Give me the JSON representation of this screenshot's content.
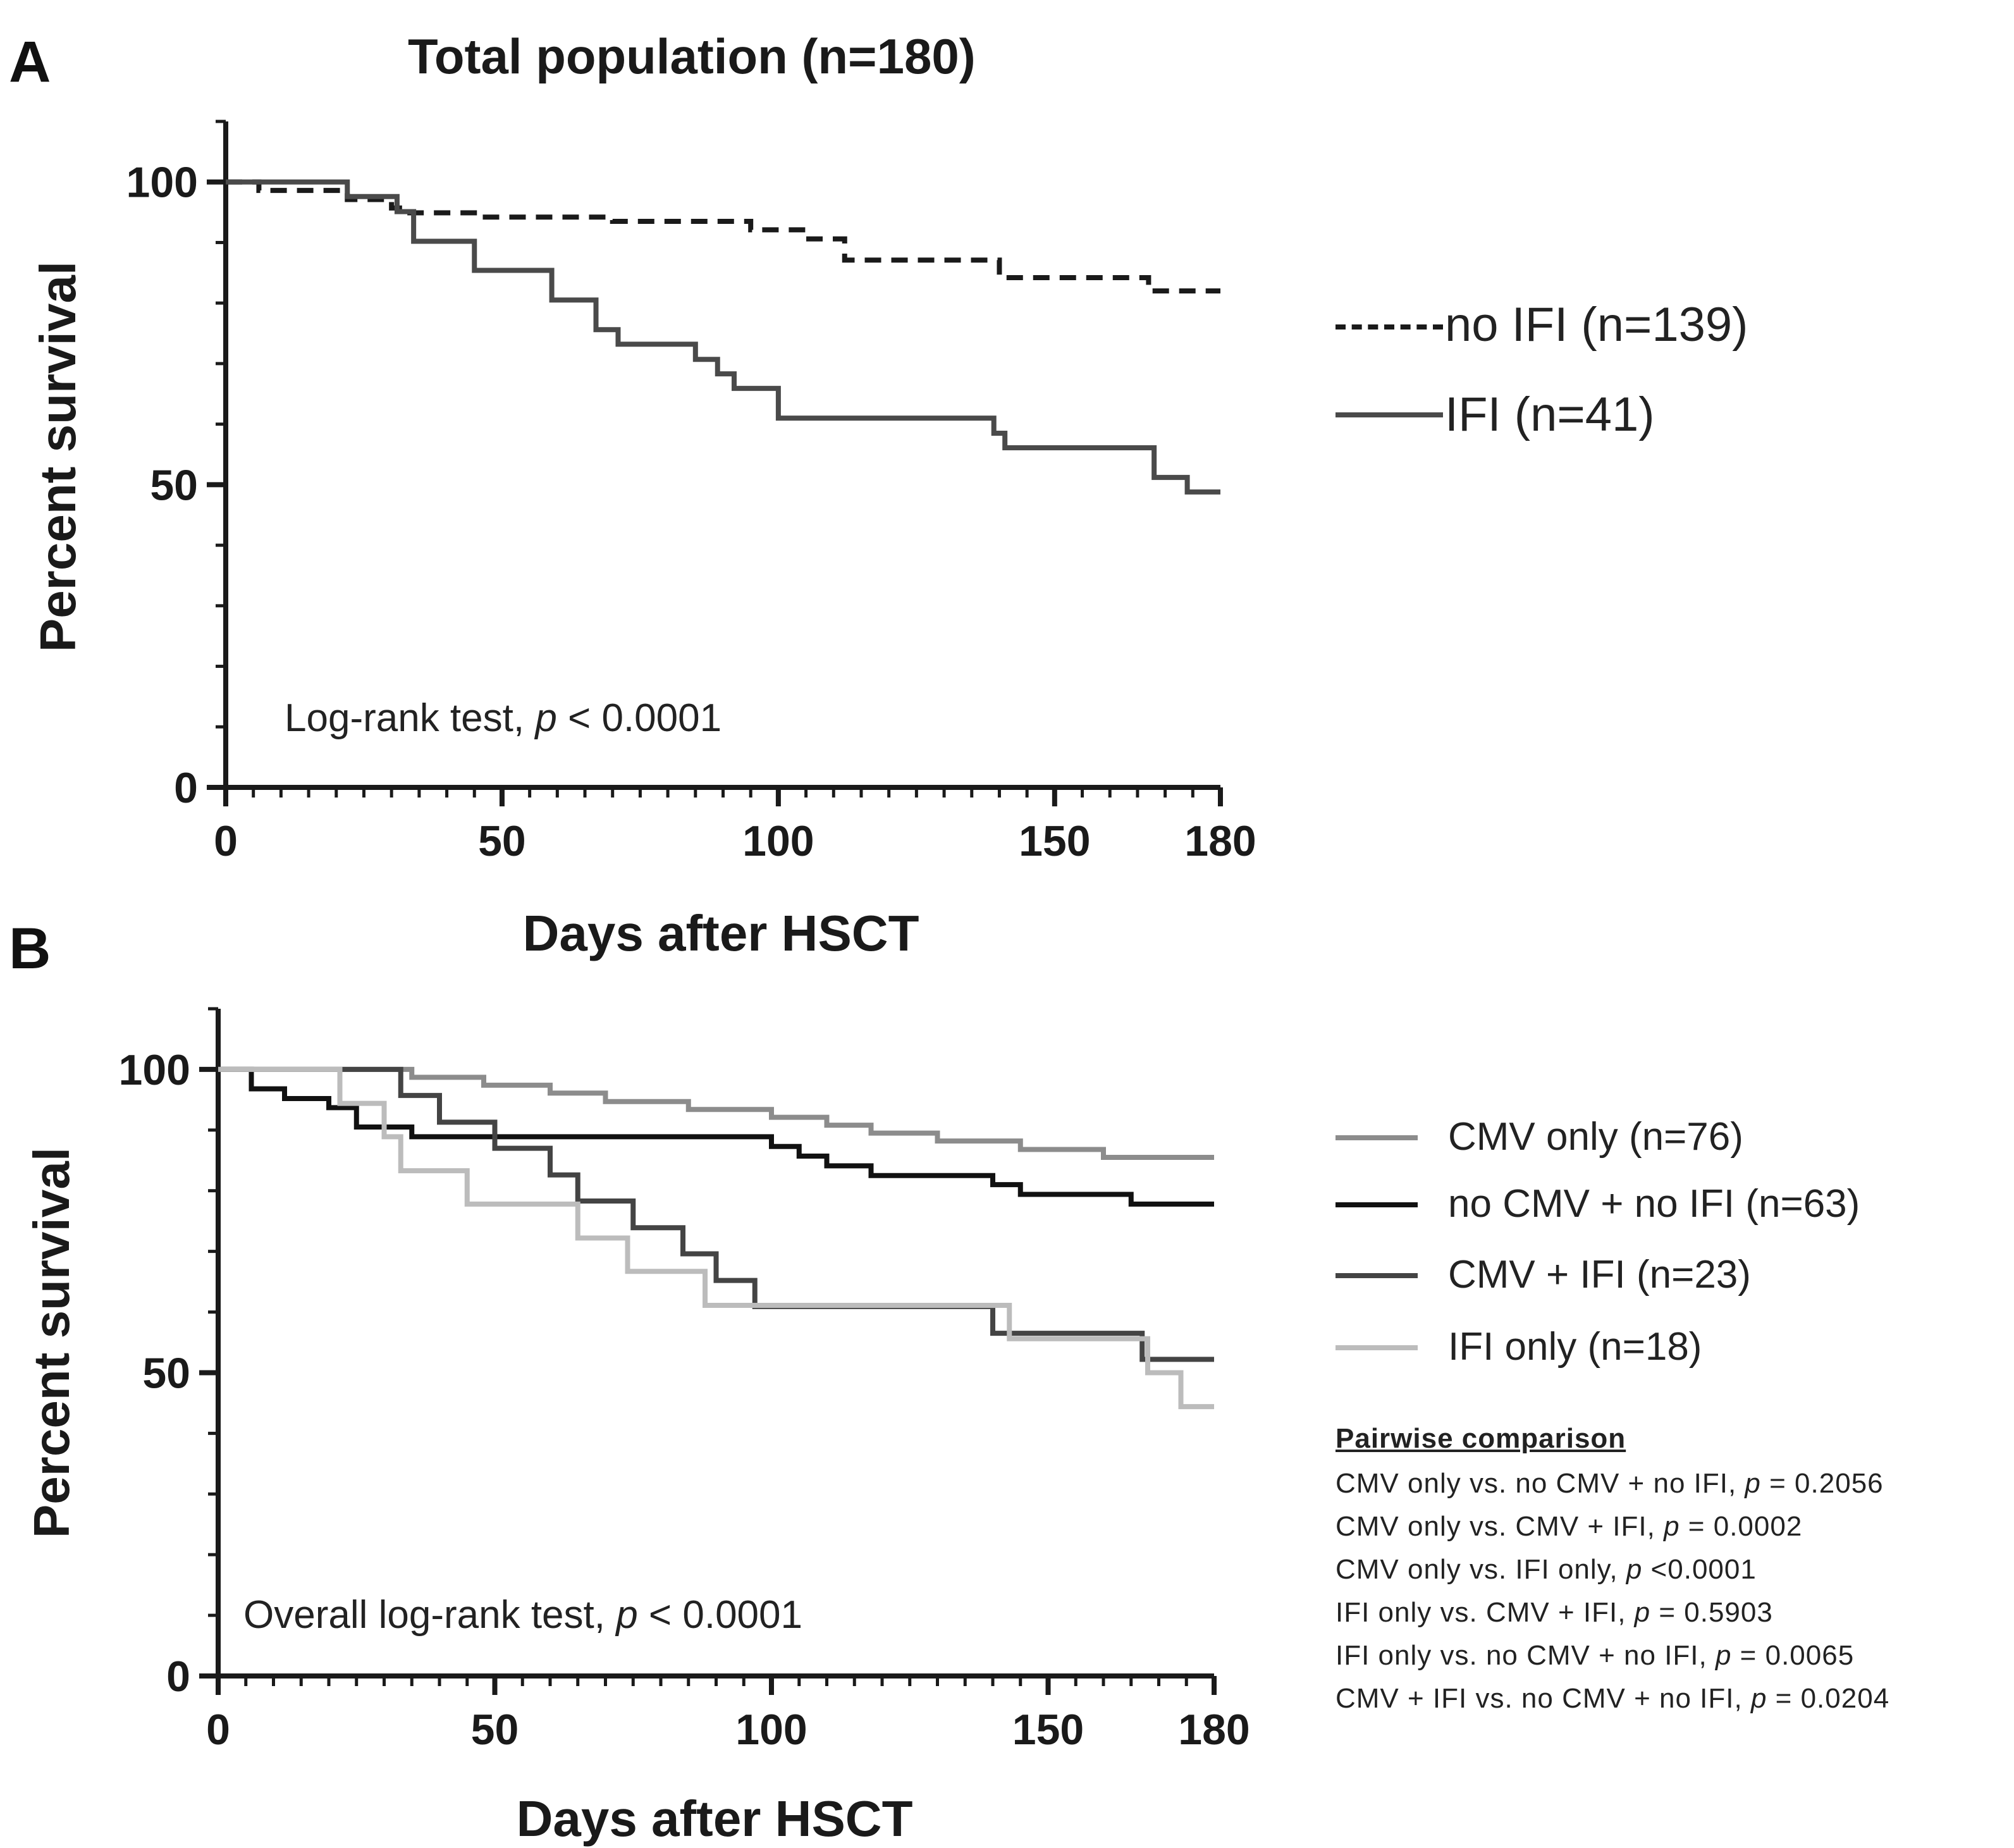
{
  "chart_data": [
    {
      "panel": "A",
      "type": "line",
      "step": true,
      "title": "Total population (n=180)",
      "xlabel": "Days after HSCT",
      "ylabel": "Percent survival",
      "xlim": [
        0,
        180
      ],
      "ylim": [
        0,
        110
      ],
      "xticks": [
        0,
        50,
        100,
        150,
        180
      ],
      "yticks": [
        0,
        50,
        100
      ],
      "grid": false,
      "legend_placement": "right",
      "annotation_prefix": "Log-rank test, ",
      "annotation_p": "p",
      "annotation_suffix": " < 0.0001",
      "series": [
        {
          "name": "no IFI (n=139)",
          "color": "#1a1a1a",
          "dash": true,
          "x": [
            0,
            6,
            22,
            30,
            32,
            45,
            70,
            95,
            105,
            112,
            140,
            167,
            180
          ],
          "y": [
            100,
            98.6,
            97.1,
            95.7,
            94.9,
            94.2,
            93.5,
            92.1,
            90.6,
            87.1,
            84.2,
            82.0,
            82.0
          ]
        },
        {
          "name": "IFI (n=41)",
          "color": "#4a4a4a",
          "dash": false,
          "x": [
            0,
            22,
            31,
            34,
            45,
            53,
            59,
            67,
            71,
            77,
            85,
            89,
            92,
            100,
            111,
            139,
            141,
            168,
            174,
            180
          ],
          "y": [
            100,
            97.6,
            95.1,
            90.2,
            85.4,
            85.4,
            80.5,
            75.6,
            73.2,
            73.2,
            70.7,
            68.3,
            65.9,
            61.0,
            61.0,
            58.5,
            56.1,
            51.2,
            48.8,
            48.8
          ]
        }
      ]
    },
    {
      "panel": "B",
      "type": "line",
      "step": true,
      "title": "",
      "xlabel": "Days after  HSCT",
      "ylabel": "Percent survival",
      "xlim": [
        0,
        180
      ],
      "ylim": [
        0,
        110
      ],
      "xticks": [
        0,
        50,
        100,
        150,
        180
      ],
      "yticks": [
        0,
        50,
        100
      ],
      "grid": false,
      "legend_placement": "right",
      "annotation_prefix": "Overall log-rank test, ",
      "annotation_p": "p",
      "annotation_suffix": " < 0.0001",
      "series": [
        {
          "name": "CMV only (n=76)",
          "color": "#8c8c8c",
          "x": [
            0,
            35,
            48,
            60,
            70,
            85,
            100,
            110,
            118,
            130,
            145,
            160,
            167,
            180
          ],
          "y": [
            100,
            98.7,
            97.4,
            96.1,
            94.7,
            93.4,
            92.1,
            90.8,
            89.5,
            88.2,
            86.8,
            85.5,
            85.5,
            85.5
          ],
          "dash": false
        },
        {
          "name": "no CMV + no IFI (n=63)",
          "color": "#111111",
          "x": [
            0,
            6,
            12,
            20,
            25,
            35,
            45,
            60,
            100,
            105,
            110,
            118,
            125,
            140,
            145,
            165,
            180
          ],
          "y": [
            100,
            96.8,
            95.2,
            93.7,
            90.5,
            88.9,
            88.9,
            88.9,
            87.3,
            85.7,
            84.1,
            82.5,
            82.5,
            81.0,
            79.4,
            77.8,
            77.8
          ],
          "dash": false
        },
        {
          "name": "CMV + IFI (n=23)",
          "color": "#444444",
          "x": [
            0,
            33,
            40,
            50,
            60,
            65,
            75,
            84,
            90,
            97,
            100,
            110,
            140,
            145,
            167,
            180
          ],
          "y": [
            100,
            95.7,
            91.3,
            87.0,
            82.6,
            78.3,
            73.9,
            69.6,
            65.2,
            60.9,
            60.9,
            60.9,
            56.5,
            56.5,
            52.2,
            52.2
          ],
          "dash": false
        },
        {
          "name": "IFI only (n=18)",
          "color": "#bcbcbc",
          "x": [
            0,
            22,
            30,
            33,
            45,
            55,
            65,
            74,
            88,
            92,
            141,
            143,
            168,
            174,
            180
          ],
          "y": [
            100,
            94.4,
            88.9,
            83.3,
            77.8,
            77.8,
            72.2,
            66.7,
            61.1,
            61.1,
            61.1,
            55.6,
            50.0,
            44.4,
            44.4
          ],
          "dash": false
        }
      ],
      "pairwise": {
        "title": "Pairwise comparison",
        "rows": [
          {
            "label": "CMV only vs. no CMV + no IFI, ",
            "p": "p",
            "value": " = 0.2056"
          },
          {
            "label": "CMV only vs. CMV + IFI, ",
            "p": "p",
            "value": " = 0.0002"
          },
          {
            "label": "CMV only vs. IFI only, ",
            "p": "p",
            "value": " <0.0001"
          },
          {
            "label": "IFI only vs. CMV + IFI, ",
            "p": "p",
            "value": " = 0.5903"
          },
          {
            "label": "IFI only vs. no CMV + no IFI, ",
            "p": "p",
            "value": " = 0.0065"
          },
          {
            "label": "CMV + IFI vs. no CMV + no IFI, ",
            "p": "p",
            "value": " = 0.0204"
          }
        ]
      }
    }
  ],
  "panels": {
    "a": {
      "letter": "A"
    },
    "b": {
      "letter": "B"
    }
  }
}
